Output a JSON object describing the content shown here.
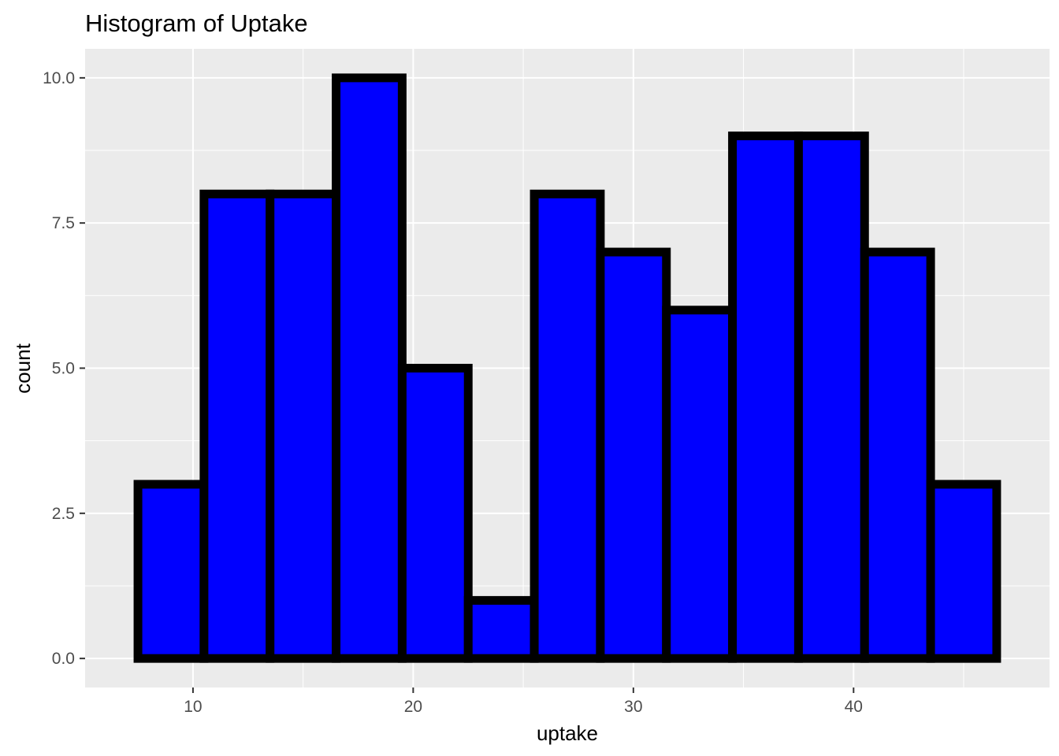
{
  "chart_data": {
    "type": "bar",
    "title": "Histogram of Uptake",
    "xlabel": "uptake",
    "ylabel": "count",
    "x_ticks": [
      10,
      20,
      30,
      40
    ],
    "x_tick_labels": [
      "10",
      "20",
      "30",
      "40"
    ],
    "y_ticks": [
      0,
      2.5,
      5,
      7.5,
      10
    ],
    "y_tick_labels": [
      "0.0",
      "2.5",
      "5.0",
      "7.5",
      "10.0"
    ],
    "xlim": [
      5.1,
      48.9
    ],
    "ylim": [
      -0.5,
      10.5
    ],
    "bin_width": 3,
    "bin_centers": [
      9,
      12,
      15,
      18,
      21,
      24,
      27,
      30,
      33,
      36,
      39,
      42,
      45
    ],
    "values": [
      3,
      8,
      8,
      10,
      5,
      1,
      8,
      7,
      6,
      9,
      9,
      7,
      3
    ],
    "fill_color": "#0000ff",
    "outline_color": "#000000",
    "panel_background": "#ebebeb",
    "grid": true,
    "grid_color": "#ffffff"
  }
}
